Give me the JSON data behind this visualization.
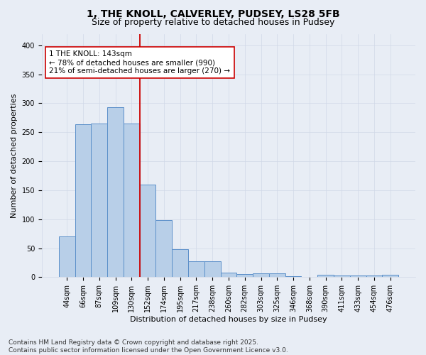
{
  "title_line1": "1, THE KNOLL, CALVERLEY, PUDSEY, LS28 5FB",
  "title_line2": "Size of property relative to detached houses in Pudsey",
  "xlabel": "Distribution of detached houses by size in Pudsey",
  "ylabel": "Number of detached properties",
  "categories": [
    "44sqm",
    "66sqm",
    "87sqm",
    "109sqm",
    "130sqm",
    "152sqm",
    "174sqm",
    "195sqm",
    "217sqm",
    "238sqm",
    "260sqm",
    "282sqm",
    "303sqm",
    "325sqm",
    "346sqm",
    "368sqm",
    "390sqm",
    "411sqm",
    "433sqm",
    "454sqm",
    "476sqm"
  ],
  "values": [
    70,
    264,
    265,
    293,
    265,
    160,
    99,
    48,
    27,
    27,
    8,
    5,
    7,
    7,
    2,
    0,
    4,
    3,
    3,
    3,
    4
  ],
  "bar_color": "#b8cfe8",
  "bar_edge_color": "#5b8fc9",
  "vline_color": "#cc0000",
  "annotation_text": "1 THE KNOLL: 143sqm\n← 78% of detached houses are smaller (990)\n21% of semi-detached houses are larger (270) →",
  "annotation_box_color": "#ffffff",
  "annotation_box_edge": "#cc0000",
  "ylim": [
    0,
    420
  ],
  "yticks": [
    0,
    50,
    100,
    150,
    200,
    250,
    300,
    350,
    400
  ],
  "grid_color": "#d0d8e8",
  "bg_color": "#e8edf5",
  "footer_line1": "Contains HM Land Registry data © Crown copyright and database right 2025.",
  "footer_line2": "Contains public sector information licensed under the Open Government Licence v3.0.",
  "title_fontsize": 10,
  "subtitle_fontsize": 9,
  "axis_label_fontsize": 8,
  "tick_fontsize": 7,
  "annotation_fontsize": 7.5,
  "footer_fontsize": 6.5,
  "vline_bar_index": 4.5
}
